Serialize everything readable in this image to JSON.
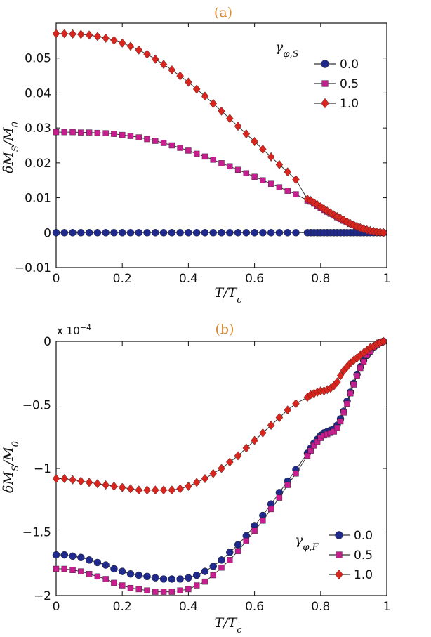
{
  "chart_data": [
    {
      "type": "line",
      "title": "(a)",
      "xlabel": "T/T",
      "xlabel_sub": "c",
      "ylabel": "δM",
      "ylabel_sub": "S",
      "ylabel_tail": "/M",
      "ylabel_tail_sub": "0",
      "xlim": [
        0,
        1
      ],
      "ylim": [
        -0.01,
        0.06
      ],
      "xticks": [
        0,
        0.2,
        0.4,
        0.6,
        0.8,
        1
      ],
      "xtick_labels": [
        "0",
        "0.2",
        "0.4",
        "0.6",
        "0.8",
        "1"
      ],
      "yticks": [
        -0.01,
        0,
        0.01,
        0.02,
        0.03,
        0.04,
        0.05
      ],
      "ytick_labels": [
        "−0.01",
        "0",
        "0.01",
        "0.02",
        "0.03",
        "0.04",
        "0.05"
      ],
      "legend_title": "γ",
      "legend_title_sub": "φ,S",
      "legend_position": "top-right",
      "series": [
        {
          "name": "0.0",
          "marker": "circle",
          "color": "#1f2a8c",
          "x": [
            0,
            0.025,
            0.05,
            0.075,
            0.1,
            0.125,
            0.15,
            0.175,
            0.2,
            0.225,
            0.25,
            0.275,
            0.3,
            0.325,
            0.35,
            0.375,
            0.4,
            0.425,
            0.45,
            0.475,
            0.5,
            0.525,
            0.55,
            0.575,
            0.6,
            0.625,
            0.65,
            0.675,
            0.7,
            0.725,
            0.76,
            0.77,
            0.78,
            0.79,
            0.8,
            0.81,
            0.82,
            0.83,
            0.84,
            0.85,
            0.86,
            0.87,
            0.88,
            0.89,
            0.9,
            0.91,
            0.92,
            0.93,
            0.94,
            0.95,
            0.96,
            0.97,
            0.98,
            0.99
          ],
          "y": [
            0,
            0,
            0,
            0,
            0,
            0,
            0,
            0,
            0,
            0,
            0,
            0,
            0,
            0,
            0,
            0,
            0,
            0,
            0,
            0,
            0,
            0,
            0,
            0,
            0,
            0,
            0,
            0,
            0,
            0,
            0,
            0,
            0,
            0,
            0,
            0,
            0,
            0,
            0,
            0,
            0,
            0,
            0,
            0,
            0,
            0,
            0,
            0,
            0,
            0,
            0,
            0,
            0,
            0
          ]
        },
        {
          "name": "0.5",
          "marker": "square",
          "color": "#c81d8f",
          "x": [
            0,
            0.025,
            0.05,
            0.075,
            0.1,
            0.125,
            0.15,
            0.175,
            0.2,
            0.225,
            0.25,
            0.275,
            0.3,
            0.325,
            0.35,
            0.375,
            0.4,
            0.425,
            0.45,
            0.475,
            0.5,
            0.525,
            0.55,
            0.575,
            0.6,
            0.625,
            0.65,
            0.675,
            0.7,
            0.725,
            0.76,
            0.77,
            0.78,
            0.79,
            0.8,
            0.81,
            0.82,
            0.83,
            0.84,
            0.85,
            0.86,
            0.87,
            0.88,
            0.89,
            0.9,
            0.91,
            0.92,
            0.93,
            0.94,
            0.95,
            0.96,
            0.97,
            0.98,
            0.99
          ],
          "y": [
            0.0288,
            0.0288,
            0.0288,
            0.0287,
            0.0287,
            0.0286,
            0.0285,
            0.0283,
            0.028,
            0.0277,
            0.0273,
            0.0268,
            0.0263,
            0.0257,
            0.025,
            0.0243,
            0.0235,
            0.0226,
            0.0218,
            0.0209,
            0.0199,
            0.019,
            0.018,
            0.017,
            0.016,
            0.015,
            0.014,
            0.013,
            0.012,
            0.011,
            0.0092,
            0.0089,
            0.0083,
            0.0077,
            0.0071,
            0.0065,
            0.006,
            0.0054,
            0.0049,
            0.0044,
            0.0039,
            0.0034,
            0.0029,
            0.0025,
            0.0021,
            0.0017,
            0.0013,
            0.001,
            0.0007,
            0.0005,
            0.0003,
            0.0002,
            0.0001,
            0.0
          ]
        },
        {
          "name": "1.0",
          "marker": "diamond",
          "color": "#d9251d",
          "x": [
            0,
            0.025,
            0.05,
            0.075,
            0.1,
            0.125,
            0.15,
            0.175,
            0.2,
            0.225,
            0.25,
            0.275,
            0.3,
            0.325,
            0.35,
            0.375,
            0.4,
            0.425,
            0.45,
            0.475,
            0.5,
            0.525,
            0.55,
            0.575,
            0.6,
            0.625,
            0.65,
            0.675,
            0.7,
            0.725,
            0.76,
            0.77,
            0.78,
            0.79,
            0.8,
            0.81,
            0.82,
            0.83,
            0.84,
            0.85,
            0.86,
            0.87,
            0.88,
            0.89,
            0.9,
            0.91,
            0.92,
            0.93,
            0.94,
            0.95,
            0.96,
            0.97,
            0.98,
            0.99
          ],
          "y": [
            0.057,
            0.057,
            0.0569,
            0.0568,
            0.0566,
            0.0562,
            0.0557,
            0.0551,
            0.0543,
            0.0534,
            0.0523,
            0.0511,
            0.0497,
            0.0482,
            0.0466,
            0.0449,
            0.0431,
            0.0411,
            0.0391,
            0.037,
            0.0348,
            0.0327,
            0.0305,
            0.0283,
            0.0261,
            0.0239,
            0.0217,
            0.0195,
            0.0174,
            0.0152,
            0.0096,
            0.0092,
            0.0086,
            0.008,
            0.0074,
            0.0068,
            0.0062,
            0.0057,
            0.0051,
            0.0046,
            0.0041,
            0.0036,
            0.0031,
            0.0026,
            0.0022,
            0.0018,
            0.0014,
            0.0011,
            0.0008,
            0.0006,
            0.0004,
            0.0002,
            0.0001,
            0.0
          ]
        }
      ]
    },
    {
      "type": "line",
      "title": "(b)",
      "xlabel": "T/T",
      "xlabel_sub": "c",
      "ylabel": "δM",
      "ylabel_sub": "S",
      "ylabel_tail": "/M",
      "ylabel_tail_sub": "0",
      "scale_prefix": "x 10",
      "scale_exponent": "−4",
      "xlim": [
        0,
        1
      ],
      "ylim": [
        -2,
        0
      ],
      "xticks": [
        0,
        0.2,
        0.4,
        0.6,
        0.8,
        1
      ],
      "xtick_labels": [
        "0",
        "0.2",
        "0.4",
        "0.6",
        "0.8",
        "1"
      ],
      "yticks": [
        -2,
        -1.5,
        -1,
        -0.5,
        0
      ],
      "ytick_labels": [
        "−2",
        "−1.5",
        "−1",
        "−0.5",
        "0"
      ],
      "legend_title": "γ",
      "legend_title_sub": "φ,F",
      "legend_position": "bottom-right",
      "series": [
        {
          "name": "0.0",
          "marker": "circle",
          "color": "#1f2a8c",
          "x": [
            0,
            0.025,
            0.05,
            0.075,
            0.1,
            0.125,
            0.15,
            0.175,
            0.2,
            0.225,
            0.25,
            0.275,
            0.3,
            0.325,
            0.35,
            0.375,
            0.4,
            0.425,
            0.45,
            0.475,
            0.5,
            0.525,
            0.55,
            0.575,
            0.6,
            0.625,
            0.65,
            0.675,
            0.7,
            0.725,
            0.76,
            0.77,
            0.78,
            0.79,
            0.8,
            0.81,
            0.82,
            0.83,
            0.84,
            0.85,
            0.86,
            0.87,
            0.88,
            0.89,
            0.9,
            0.91,
            0.92,
            0.93,
            0.94,
            0.95,
            0.96,
            0.97,
            0.98,
            0.99
          ],
          "y": [
            -1.68,
            -1.68,
            -1.69,
            -1.7,
            -1.72,
            -1.74,
            -1.76,
            -1.79,
            -1.81,
            -1.83,
            -1.84,
            -1.85,
            -1.86,
            -1.87,
            -1.87,
            -1.87,
            -1.86,
            -1.84,
            -1.81,
            -1.77,
            -1.72,
            -1.66,
            -1.6,
            -1.53,
            -1.45,
            -1.37,
            -1.28,
            -1.19,
            -1.1,
            -1.01,
            -0.88,
            -0.84,
            -0.8,
            -0.77,
            -0.74,
            -0.72,
            -0.71,
            -0.7,
            -0.69,
            -0.66,
            -0.61,
            -0.55,
            -0.47,
            -0.4,
            -0.33,
            -0.26,
            -0.2,
            -0.15,
            -0.11,
            -0.08,
            -0.05,
            -0.03,
            -0.01,
            0.0
          ]
        },
        {
          "name": "0.5",
          "marker": "square",
          "color": "#c81d8f",
          "x": [
            0,
            0.025,
            0.05,
            0.075,
            0.1,
            0.125,
            0.15,
            0.175,
            0.2,
            0.225,
            0.25,
            0.275,
            0.3,
            0.325,
            0.35,
            0.375,
            0.4,
            0.425,
            0.45,
            0.475,
            0.5,
            0.525,
            0.55,
            0.575,
            0.6,
            0.625,
            0.65,
            0.675,
            0.7,
            0.725,
            0.76,
            0.77,
            0.78,
            0.79,
            0.8,
            0.81,
            0.82,
            0.83,
            0.84,
            0.85,
            0.86,
            0.87,
            0.88,
            0.89,
            0.9,
            0.91,
            0.92,
            0.93,
            0.94,
            0.95,
            0.96,
            0.97,
            0.98,
            0.99
          ],
          "y": [
            -1.79,
            -1.79,
            -1.8,
            -1.81,
            -1.83,
            -1.85,
            -1.87,
            -1.9,
            -1.92,
            -1.94,
            -1.95,
            -1.96,
            -1.97,
            -1.97,
            -1.97,
            -1.96,
            -1.95,
            -1.92,
            -1.89,
            -1.84,
            -1.78,
            -1.72,
            -1.65,
            -1.57,
            -1.49,
            -1.41,
            -1.32,
            -1.23,
            -1.13,
            -1.04,
            -0.9,
            -0.86,
            -0.82,
            -0.79,
            -0.76,
            -0.74,
            -0.73,
            -0.72,
            -0.71,
            -0.68,
            -0.63,
            -0.56,
            -0.49,
            -0.41,
            -0.34,
            -0.27,
            -0.21,
            -0.16,
            -0.11,
            -0.08,
            -0.05,
            -0.03,
            -0.01,
            0.0
          ]
        },
        {
          "name": "1.0",
          "marker": "diamond",
          "color": "#d9251d",
          "x": [
            0,
            0.025,
            0.05,
            0.075,
            0.1,
            0.125,
            0.15,
            0.175,
            0.2,
            0.225,
            0.25,
            0.275,
            0.3,
            0.325,
            0.35,
            0.375,
            0.4,
            0.425,
            0.45,
            0.475,
            0.5,
            0.525,
            0.55,
            0.575,
            0.6,
            0.625,
            0.65,
            0.675,
            0.7,
            0.725,
            0.76,
            0.77,
            0.78,
            0.79,
            0.8,
            0.81,
            0.82,
            0.83,
            0.84,
            0.85,
            0.86,
            0.87,
            0.88,
            0.89,
            0.9,
            0.91,
            0.92,
            0.93,
            0.94,
            0.95,
            0.96,
            0.97,
            0.98,
            0.99
          ],
          "y": [
            -1.08,
            -1.08,
            -1.09,
            -1.1,
            -1.11,
            -1.12,
            -1.13,
            -1.14,
            -1.15,
            -1.16,
            -1.17,
            -1.17,
            -1.17,
            -1.17,
            -1.17,
            -1.16,
            -1.14,
            -1.11,
            -1.08,
            -1.04,
            -1.0,
            -0.95,
            -0.9,
            -0.84,
            -0.78,
            -0.72,
            -0.66,
            -0.6,
            -0.54,
            -0.49,
            -0.44,
            -0.42,
            -0.41,
            -0.4,
            -0.39,
            -0.39,
            -0.38,
            -0.37,
            -0.35,
            -0.32,
            -0.27,
            -0.23,
            -0.2,
            -0.17,
            -0.15,
            -0.13,
            -0.11,
            -0.09,
            -0.07,
            -0.05,
            -0.04,
            -0.02,
            -0.01,
            0.0
          ]
        }
      ]
    }
  ]
}
